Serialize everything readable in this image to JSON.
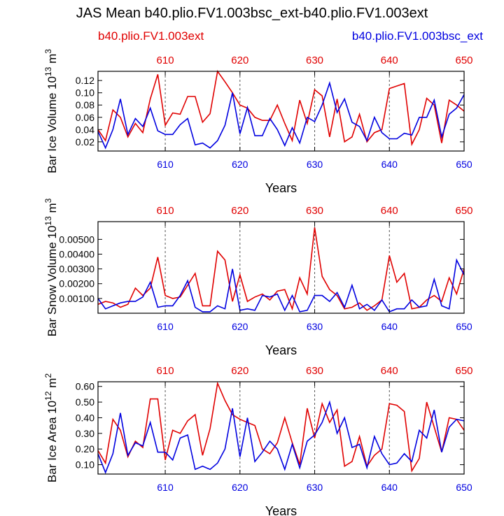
{
  "page": {
    "title": "JAS Mean b40.plio.FV1.003bsc_ext-b40.plio.FV1.003ext",
    "legend_red": "b40.plio.FV1.003ext",
    "legend_blue": "b40.plio.FV1.003bsc_ext"
  },
  "colors": {
    "red": "#e00000",
    "blue": "#0000e0",
    "axis": "#000000",
    "grid": "#555555"
  },
  "chart_data": [
    {
      "type": "line",
      "id": "ice-volume",
      "title": "",
      "xlabel": "Years",
      "ylabel": "Bar Ice Volume 10^13 m^3",
      "xlim": [
        601,
        650
      ],
      "ylim": [
        0.005,
        0.135
      ],
      "xticks": [
        610,
        620,
        630,
        640,
        650
      ],
      "xtick_labels": [
        "610",
        "620",
        "630",
        "640",
        "650"
      ],
      "yticks": [
        0.02,
        0.04,
        0.06,
        0.08,
        0.1,
        0.12
      ],
      "ytick_labels": [
        "0.02",
        "0.04",
        "0.06",
        "0.08",
        "0.10",
        "0.12"
      ],
      "vgrid": [
        610,
        620,
        630,
        640
      ],
      "series": [
        {
          "name": "b40.plio.FV1.003ext",
          "color": "red",
          "x": [
            601,
            602,
            603,
            604,
            605,
            606,
            607,
            608,
            609,
            610,
            611,
            612,
            613,
            614,
            615,
            616,
            617,
            618,
            619,
            620,
            621,
            622,
            623,
            624,
            625,
            626,
            627,
            628,
            629,
            630,
            631,
            632,
            633,
            634,
            635,
            636,
            637,
            638,
            639,
            640,
            641,
            642,
            643,
            644,
            645,
            646,
            647,
            648,
            649,
            650
          ],
          "values": [
            0.04,
            0.022,
            0.072,
            0.06,
            0.028,
            0.05,
            0.035,
            0.09,
            0.13,
            0.047,
            0.067,
            0.065,
            0.094,
            0.094,
            0.052,
            0.066,
            0.135,
            0.118,
            0.1,
            0.08,
            0.075,
            0.06,
            0.055,
            0.055,
            0.08,
            0.05,
            0.022,
            0.088,
            0.05,
            0.105,
            0.095,
            0.028,
            0.09,
            0.02,
            0.028,
            0.065,
            0.02,
            0.035,
            0.04,
            0.107,
            0.111,
            0.115,
            0.016,
            0.04,
            0.091,
            0.08,
            0.018,
            0.088,
            0.08,
            0.07
          ]
        },
        {
          "name": "b40.plio.FV1.003bsc_ext",
          "color": "blue",
          "x": [
            601,
            602,
            603,
            604,
            605,
            606,
            607,
            608,
            609,
            610,
            611,
            612,
            613,
            614,
            615,
            616,
            617,
            618,
            619,
            620,
            621,
            622,
            623,
            624,
            625,
            626,
            627,
            628,
            629,
            630,
            631,
            632,
            633,
            634,
            635,
            636,
            637,
            638,
            639,
            640,
            641,
            642,
            643,
            644,
            645,
            646,
            647,
            648,
            649,
            650
          ],
          "values": [
            0.037,
            0.01,
            0.04,
            0.09,
            0.032,
            0.058,
            0.045,
            0.075,
            0.038,
            0.032,
            0.032,
            0.048,
            0.058,
            0.015,
            0.018,
            0.01,
            0.022,
            0.047,
            0.1,
            0.033,
            0.076,
            0.03,
            0.03,
            0.058,
            0.04,
            0.014,
            0.043,
            0.018,
            0.06,
            0.053,
            0.08,
            0.116,
            0.068,
            0.09,
            0.052,
            0.045,
            0.022,
            0.06,
            0.035,
            0.025,
            0.025,
            0.034,
            0.031,
            0.06,
            0.06,
            0.088,
            0.028,
            0.065,
            0.075,
            0.097
          ]
        }
      ]
    },
    {
      "type": "line",
      "id": "snow-volume",
      "title": "",
      "xlabel": "Years",
      "ylabel": "Bar Snow Volume 10^13 m^3",
      "xlim": [
        601,
        650
      ],
      "ylim": [
        0.0,
        0.0062
      ],
      "xticks": [
        610,
        620,
        630,
        640,
        650
      ],
      "xtick_labels": [
        "610",
        "620",
        "630",
        "640",
        "650"
      ],
      "yticks": [
        0.001,
        0.002,
        0.003,
        0.004,
        0.005
      ],
      "ytick_labels": [
        "0.00100",
        "0.00200",
        "0.00300",
        "0.00400",
        "0.00500"
      ],
      "vgrid": [
        610,
        620,
        630,
        640
      ],
      "series": [
        {
          "name": "b40.plio.FV1.003ext",
          "color": "red",
          "x": [
            601,
            602,
            603,
            604,
            605,
            606,
            607,
            608,
            609,
            610,
            611,
            612,
            613,
            614,
            615,
            616,
            617,
            618,
            619,
            620,
            621,
            622,
            623,
            624,
            625,
            626,
            627,
            628,
            629,
            630,
            631,
            632,
            633,
            634,
            635,
            636,
            637,
            638,
            639,
            640,
            641,
            642,
            643,
            644,
            645,
            646,
            647,
            648,
            649,
            650
          ],
          "values": [
            0.0006,
            0.0008,
            0.0007,
            0.0004,
            0.0006,
            0.0017,
            0.0012,
            0.0017,
            0.0038,
            0.0012,
            0.001,
            0.0011,
            0.0019,
            0.0027,
            0.0005,
            0.0005,
            0.0042,
            0.0036,
            0.0008,
            0.0026,
            0.0008,
            0.0011,
            0.0013,
            0.0009,
            0.0015,
            0.0016,
            0.0003,
            0.0024,
            0.0013,
            0.0058,
            0.0025,
            0.0016,
            0.0012,
            0.0003,
            0.0004,
            0.0007,
            0.0002,
            0.0005,
            0.0009,
            0.0039,
            0.0021,
            0.0027,
            0.0003,
            0.0004,
            0.0009,
            0.0012,
            0.0008,
            0.0024,
            0.0013,
            0.003
          ]
        },
        {
          "name": "b40.plio.FV1.003bsc_ext",
          "color": "blue",
          "x": [
            601,
            602,
            603,
            604,
            605,
            606,
            607,
            608,
            609,
            610,
            611,
            612,
            613,
            614,
            615,
            616,
            617,
            618,
            619,
            620,
            621,
            622,
            623,
            624,
            625,
            626,
            627,
            628,
            629,
            630,
            631,
            632,
            633,
            634,
            635,
            636,
            637,
            638,
            639,
            640,
            641,
            642,
            643,
            644,
            645,
            646,
            647,
            648,
            649,
            650
          ],
          "values": [
            0.001,
            0.0003,
            0.0005,
            0.0007,
            0.0008,
            0.0008,
            0.0011,
            0.0021,
            0.0004,
            0.0005,
            0.0005,
            0.0012,
            0.0022,
            0.0004,
            0.0001,
            0.0001,
            0.0005,
            0.0003,
            0.003,
            0.0002,
            0.0003,
            0.0002,
            0.0012,
            0.0011,
            0.0013,
            0.0002,
            0.0012,
            0.0001,
            0.0002,
            0.0012,
            0.0012,
            0.0008,
            0.0014,
            0.0004,
            0.0019,
            0.0003,
            0.0006,
            0.0002,
            0.0009,
            0.0001,
            0.0003,
            0.0003,
            0.0009,
            0.0004,
            0.0005,
            0.0023,
            0.0005,
            0.0003,
            0.0036,
            0.0026
          ]
        }
      ]
    },
    {
      "type": "line",
      "id": "ice-area",
      "title": "",
      "xlabel": "Years",
      "ylabel": "Bar Ice Area 10^12 m^2",
      "xlim": [
        601,
        650
      ],
      "ylim": [
        0.04,
        0.63
      ],
      "xticks": [
        610,
        620,
        630,
        640,
        650
      ],
      "xtick_labels": [
        "610",
        "620",
        "630",
        "640",
        "650"
      ],
      "yticks": [
        0.1,
        0.2,
        0.3,
        0.4,
        0.5,
        0.6
      ],
      "ytick_labels": [
        "0.10",
        "0.20",
        "0.30",
        "0.40",
        "0.50",
        "0.60"
      ],
      "vgrid": [
        610,
        620,
        630,
        640
      ],
      "series": [
        {
          "name": "b40.plio.FV1.003ext",
          "color": "red",
          "x": [
            601,
            602,
            603,
            604,
            605,
            606,
            607,
            608,
            609,
            610,
            611,
            612,
            613,
            614,
            615,
            616,
            617,
            618,
            619,
            620,
            621,
            622,
            623,
            624,
            625,
            626,
            627,
            628,
            629,
            630,
            631,
            632,
            633,
            634,
            635,
            636,
            637,
            638,
            639,
            640,
            641,
            642,
            643,
            644,
            645,
            646,
            647,
            648,
            649,
            650
          ],
          "values": [
            0.19,
            0.11,
            0.39,
            0.32,
            0.15,
            0.25,
            0.21,
            0.52,
            0.52,
            0.13,
            0.32,
            0.3,
            0.38,
            0.42,
            0.16,
            0.33,
            0.62,
            0.51,
            0.42,
            0.39,
            0.37,
            0.35,
            0.2,
            0.17,
            0.24,
            0.4,
            0.24,
            0.1,
            0.46,
            0.27,
            0.49,
            0.37,
            0.45,
            0.09,
            0.12,
            0.28,
            0.09,
            0.16,
            0.2,
            0.49,
            0.48,
            0.44,
            0.06,
            0.14,
            0.5,
            0.34,
            0.18,
            0.4,
            0.39,
            0.32
          ]
        },
        {
          "name": "b40.plio.FV1.003bsc_ext",
          "color": "blue",
          "x": [
            601,
            602,
            603,
            604,
            605,
            606,
            607,
            608,
            609,
            610,
            611,
            612,
            613,
            614,
            615,
            616,
            617,
            618,
            619,
            620,
            621,
            622,
            623,
            624,
            625,
            626,
            627,
            628,
            629,
            630,
            631,
            632,
            633,
            634,
            635,
            636,
            637,
            638,
            639,
            640,
            641,
            642,
            643,
            644,
            645,
            646,
            647,
            648,
            649,
            650
          ],
          "values": [
            0.17,
            0.05,
            0.17,
            0.43,
            0.16,
            0.24,
            0.22,
            0.37,
            0.18,
            0.18,
            0.13,
            0.27,
            0.29,
            0.07,
            0.09,
            0.07,
            0.11,
            0.2,
            0.46,
            0.15,
            0.4,
            0.12,
            0.18,
            0.25,
            0.2,
            0.07,
            0.23,
            0.08,
            0.25,
            0.29,
            0.37,
            0.5,
            0.3,
            0.4,
            0.21,
            0.23,
            0.08,
            0.28,
            0.17,
            0.1,
            0.11,
            0.17,
            0.12,
            0.32,
            0.27,
            0.45,
            0.18,
            0.34,
            0.39,
            0.38
          ]
        }
      ]
    }
  ]
}
